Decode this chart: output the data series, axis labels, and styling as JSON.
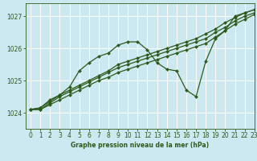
{
  "title": "Graphe pression niveau de la mer (hPa)",
  "background_color": "#cce8f0",
  "grid_color": "#ffffff",
  "line_color": "#2d5a1b",
  "xlim": [
    -0.5,
    23
  ],
  "ylim": [
    1023.5,
    1027.4
  ],
  "yticks": [
    1024,
    1025,
    1026,
    1027
  ],
  "xticks": [
    0,
    1,
    2,
    3,
    4,
    5,
    6,
    7,
    8,
    9,
    10,
    11,
    12,
    13,
    14,
    15,
    16,
    17,
    18,
    19,
    20,
    21,
    22,
    23
  ],
  "series": [
    {
      "x": [
        0,
        1,
        2,
        3,
        4,
        5,
        6,
        7,
        8,
        9,
        10,
        11,
        12,
        13,
        14,
        15,
        16,
        17,
        18,
        19,
        20,
        21,
        22,
        23
      ],
      "y": [
        1024.1,
        1024.1,
        1024.25,
        1024.4,
        1024.55,
        1024.7,
        1024.85,
        1025.0,
        1025.1,
        1025.25,
        1025.35,
        1025.45,
        1025.55,
        1025.65,
        1025.75,
        1025.85,
        1025.95,
        1026.05,
        1026.15,
        1026.35,
        1026.55,
        1026.75,
        1026.9,
        1027.05
      ]
    },
    {
      "x": [
        0,
        1,
        2,
        3,
        4,
        5,
        6,
        7,
        8,
        9,
        10,
        11,
        12,
        13,
        14,
        15,
        16,
        17,
        18,
        19,
        20,
        21,
        22,
        23
      ],
      "y": [
        1024.1,
        1024.1,
        1024.3,
        1024.5,
        1024.65,
        1024.8,
        1024.95,
        1025.1,
        1025.25,
        1025.4,
        1025.5,
        1025.6,
        1025.7,
        1025.8,
        1025.9,
        1026.0,
        1026.1,
        1026.2,
        1026.3,
        1026.5,
        1026.65,
        1026.85,
        1027.0,
        1027.1
      ]
    },
    {
      "x": [
        0,
        1,
        2,
        3,
        4,
        5,
        6,
        7,
        8,
        9,
        10,
        11,
        12,
        13,
        14,
        15,
        16,
        17,
        18,
        19,
        20,
        21,
        22,
        23
      ],
      "y": [
        1024.1,
        1024.15,
        1024.35,
        1024.55,
        1024.7,
        1024.85,
        1025.0,
        1025.15,
        1025.3,
        1025.5,
        1025.6,
        1025.7,
        1025.8,
        1025.9,
        1026.0,
        1026.1,
        1026.2,
        1026.3,
        1026.45,
        1026.6,
        1026.8,
        1026.95,
        1027.1,
        1027.2
      ]
    },
    {
      "x": [
        0,
        1,
        2,
        3,
        4,
        5,
        6,
        7,
        8,
        9,
        10,
        11,
        12,
        13,
        14,
        15,
        16,
        17,
        18,
        19,
        20,
        21,
        22,
        23
      ],
      "y": [
        1024.1,
        1024.15,
        1024.4,
        1024.55,
        1024.8,
        1025.3,
        1025.55,
        1025.75,
        1025.85,
        1026.1,
        1026.2,
        1026.2,
        1025.95,
        1025.55,
        1025.35,
        1025.3,
        1024.7,
        1024.5,
        1025.6,
        1026.3,
        1026.55,
        1027.0,
        1027.1,
        1027.2
      ]
    }
  ]
}
